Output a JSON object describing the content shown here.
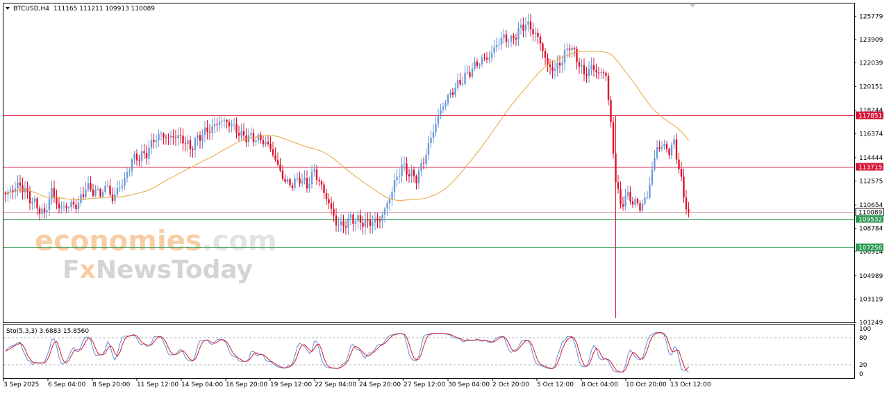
{
  "header": {
    "symbol": "BTCUSD,H4",
    "ohlc": "111165 111211 109913 110089",
    "indicator": "Sto(5,3,3) 3.6883 15.8560"
  },
  "watermark": {
    "brand1_part1": "economies",
    "brand1_part2": ".com",
    "brand2_part1": "F",
    "brand2_part2": "x",
    "brand2_part3": "NewsToday"
  },
  "colors": {
    "bull": "#6d9ad8",
    "bear": "#e0102b",
    "ma": "#e8a33a",
    "resistance": "#d6173b",
    "support": "#2f9a55",
    "price_line": "#d9a3b0",
    "stoch_main": "#5b8fd6",
    "stoch_signal": "#d8142b"
  },
  "chart_data": {
    "type": "candlestick",
    "symbol": "BTCUSD",
    "timeframe": "H4",
    "ylim": [
      101249,
      126800
    ],
    "price_ticks": [
      125779,
      123909,
      122039,
      120151,
      118244,
      116374,
      114444,
      112575,
      110654,
      108784,
      106914,
      104989,
      103119,
      101249
    ],
    "horizontal_levels": [
      {
        "value": 117851,
        "label": "117851",
        "kind": "resistance"
      },
      {
        "value": 113715,
        "label": "113715",
        "kind": "resistance"
      },
      {
        "value": 110089,
        "label": "110089",
        "kind": "current"
      },
      {
        "value": 109532,
        "label": "109532",
        "kind": "support"
      },
      {
        "value": 107256,
        "label": "107256",
        "kind": "support"
      }
    ],
    "x_labels": [
      "3 Sep 2025",
      "6 Sep 04:00",
      "8 Sep 20:00",
      "11 Sep 12:00",
      "14 Sep 04:00",
      "16 Sep 20:00",
      "19 Sep 12:00",
      "22 Sep 04:00",
      "24 Sep 20:00",
      "27 Sep 12:00",
      "30 Sep 04:00",
      "2 Oct 20:00",
      "5 Oct 12:00",
      "8 Oct 04:00",
      "10 Oct 20:00",
      "13 Oct 12:00"
    ],
    "close_path": [
      [
        0,
        111500
      ],
      [
        6,
        112300
      ],
      [
        10,
        111200
      ],
      [
        14,
        110300
      ],
      [
        16,
        109900
      ],
      [
        19,
        111800
      ],
      [
        22,
        110400
      ],
      [
        26,
        110600
      ],
      [
        30,
        110700
      ],
      [
        33,
        112100
      ],
      [
        36,
        111800
      ],
      [
        39,
        111600
      ],
      [
        42,
        112200
      ],
      [
        44,
        111000
      ],
      [
        46,
        111900
      ],
      [
        49,
        112600
      ],
      [
        52,
        114300
      ],
      [
        55,
        114500
      ],
      [
        58,
        114800
      ],
      [
        61,
        115900
      ],
      [
        64,
        116300
      ],
      [
        67,
        116000
      ],
      [
        70,
        116200
      ],
      [
        73,
        115900
      ],
      [
        76,
        115200
      ],
      [
        79,
        116000
      ],
      [
        82,
        116500
      ],
      [
        85,
        116800
      ],
      [
        88,
        117400
      ],
      [
        91,
        117300
      ],
      [
        94,
        116900
      ],
      [
        97,
        116200
      ],
      [
        100,
        116100
      ],
      [
        103,
        116000
      ],
      [
        106,
        115800
      ],
      [
        109,
        115200
      ],
      [
        112,
        113800
      ],
      [
        115,
        112500
      ],
      [
        118,
        112300
      ],
      [
        121,
        112800
      ],
      [
        124,
        112200
      ],
      [
        127,
        113400
      ],
      [
        130,
        112100
      ],
      [
        133,
        110800
      ],
      [
        136,
        109200
      ],
      [
        139,
        109000
      ],
      [
        142,
        109600
      ],
      [
        145,
        109400
      ],
      [
        148,
        109200
      ],
      [
        151,
        109300
      ],
      [
        154,
        109500
      ],
      [
        157,
        110700
      ],
      [
        160,
        112400
      ],
      [
        163,
        113800
      ],
      [
        166,
        113200
      ],
      [
        169,
        112800
      ],
      [
        172,
        114200
      ],
      [
        175,
        116000
      ],
      [
        178,
        117800
      ],
      [
        181,
        119000
      ],
      [
        184,
        119800
      ],
      [
        187,
        120500
      ],
      [
        190,
        121100
      ],
      [
        193,
        121800
      ],
      [
        196,
        122300
      ],
      [
        199,
        122500
      ],
      [
        202,
        123500
      ],
      [
        205,
        124100
      ],
      [
        208,
        123800
      ],
      [
        211,
        124600
      ],
      [
        214,
        125200
      ],
      [
        217,
        124600
      ],
      [
        220,
        123700
      ],
      [
        223,
        121800
      ],
      [
        226,
        121500
      ],
      [
        229,
        122300
      ],
      [
        232,
        123500
      ],
      [
        235,
        122400
      ],
      [
        238,
        121100
      ],
      [
        241,
        121700
      ],
      [
        244,
        121200
      ],
      [
        247,
        121200
      ],
      [
        249,
        117000
      ],
      [
        251,
        112800
      ],
      [
        253,
        110500
      ],
      [
        255,
        111400
      ],
      [
        258,
        111000
      ],
      [
        261,
        110500
      ],
      [
        264,
        111300
      ],
      [
        266,
        113500
      ],
      [
        268,
        115200
      ],
      [
        270,
        115400
      ],
      [
        273,
        115000
      ],
      [
        275,
        115600
      ],
      [
        277,
        113700
      ],
      [
        279,
        111300
      ],
      [
        281,
        110089
      ]
    ],
    "spike": {
      "index": 251,
      "high": 117800,
      "low": 101600
    },
    "ma_period": 50,
    "oscillator": {
      "name": "Stochastic",
      "params": "5,3,3",
      "main": 3.6883,
      "signal": 15.856,
      "ylim": [
        0,
        100
      ],
      "levels": [
        80,
        20
      ],
      "ticks": [
        100,
        80,
        20,
        0
      ]
    }
  }
}
